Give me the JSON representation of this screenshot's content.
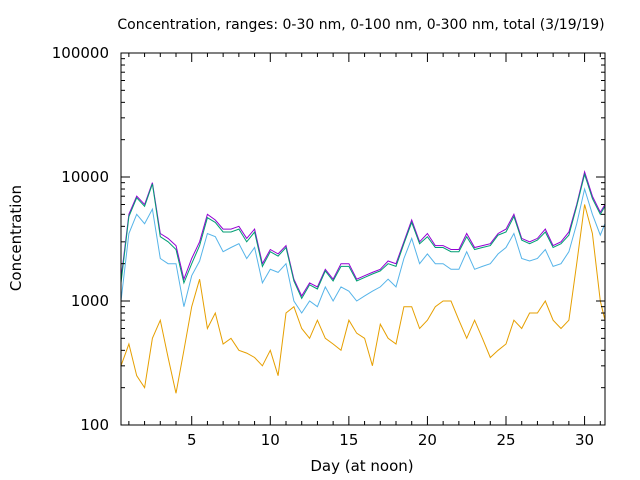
{
  "chart_data": {
    "type": "line",
    "title": "Concentration, ranges: 0-30 nm, 0-100 nm, 0-300 nm, total (3/19/19)",
    "xlabel": "Day (at noon)",
    "ylabel": "Concentration",
    "xlim": [
      0.5,
      31.3
    ],
    "ylim": [
      100,
      100000
    ],
    "yscale": "log",
    "x_ticks": [
      5,
      10,
      15,
      20,
      25,
      30
    ],
    "x_tick_labels": [
      "5",
      "10",
      "15",
      "20",
      "25",
      "30"
    ],
    "y_ticks": [
      100,
      1000,
      10000,
      100000
    ],
    "y_tick_labels": [
      "100",
      "1000",
      "10000",
      "100000"
    ],
    "grid": false,
    "legend": "none",
    "x": [
      0.5,
      1.0,
      1.5,
      2.0,
      2.5,
      3.0,
      3.5,
      4.0,
      4.5,
      5.0,
      5.5,
      6.0,
      6.5,
      7.0,
      7.5,
      8.0,
      8.5,
      9.0,
      9.5,
      10.0,
      10.5,
      11.0,
      11.5,
      12.0,
      12.5,
      13.0,
      13.5,
      14.0,
      14.5,
      15.0,
      15.5,
      16.0,
      16.5,
      17.0,
      17.5,
      18.0,
      18.5,
      19.0,
      19.5,
      20.0,
      20.5,
      21.0,
      21.5,
      22.0,
      22.5,
      23.0,
      23.5,
      24.0,
      24.5,
      25.0,
      25.5,
      26.0,
      26.5,
      27.0,
      27.5,
      28.0,
      28.5,
      29.0,
      29.5,
      30.0,
      30.5,
      31.0,
      31.3
    ],
    "series": [
      {
        "color": "#9400d3",
        "values": [
          1500,
          5000,
          7000,
          6000,
          9000,
          3500,
          3200,
          2800,
          1500,
          2200,
          3000,
          5000,
          4500,
          3800,
          3800,
          4000,
          3200,
          3800,
          2000,
          2600,
          2400,
          2800,
          1500,
          1100,
          1400,
          1300,
          1800,
          1500,
          2000,
          2000,
          1500,
          1600,
          1700,
          1800,
          2100,
          2000,
          3000,
          4500,
          3000,
          3500,
          2800,
          2800,
          2600,
          2600,
          3500,
          2700,
          2800,
          2900,
          3500,
          3800,
          5000,
          3200,
          3000,
          3200,
          3800,
          2800,
          3000,
          3600,
          6000,
          11000,
          7000,
          5200,
          6000
        ]
      },
      {
        "color": "#009e73",
        "values": [
          1400,
          4800,
          6800,
          5800,
          8800,
          3300,
          3000,
          2600,
          1400,
          2000,
          2800,
          4700,
          4300,
          3600,
          3600,
          3800,
          3000,
          3600,
          1900,
          2500,
          2300,
          2700,
          1450,
          1050,
          1350,
          1250,
          1750,
          1450,
          1900,
          1900,
          1450,
          1550,
          1650,
          1750,
          2000,
          1900,
          2900,
          4300,
          2900,
          3300,
          2700,
          2700,
          2500,
          2500,
          3300,
          2600,
          2700,
          2800,
          3400,
          3600,
          4800,
          3100,
          2900,
          3100,
          3600,
          2700,
          2900,
          3400,
          5800,
          10500,
          6700,
          5000,
          5800
        ]
      },
      {
        "color": "#56b4e9",
        "values": [
          1000,
          3500,
          5000,
          4200,
          5500,
          2200,
          2000,
          2000,
          900,
          1600,
          2100,
          3500,
          3300,
          2500,
          2700,
          2900,
          2200,
          2700,
          1400,
          1800,
          1700,
          2000,
          1000,
          800,
          1000,
          900,
          1300,
          1000,
          1300,
          1200,
          1000,
          1100,
          1200,
          1300,
          1500,
          1300,
          2200,
          3200,
          2000,
          2400,
          2000,
          2000,
          1800,
          1800,
          2500,
          1800,
          1900,
          2000,
          2400,
          2700,
          3500,
          2200,
          2100,
          2200,
          2600,
          1900,
          2000,
          2500,
          4200,
          8000,
          5000,
          3400,
          4200
        ]
      },
      {
        "color": "#e69f00",
        "values": [
          300,
          450,
          250,
          200,
          500,
          700,
          350,
          180,
          400,
          900,
          1500,
          600,
          800,
          450,
          500,
          400,
          380,
          350,
          300,
          400,
          250,
          800,
          900,
          600,
          500,
          700,
          500,
          450,
          400,
          700,
          550,
          500,
          300,
          650,
          500,
          450,
          900,
          900,
          600,
          700,
          900,
          1000,
          1000,
          700,
          500,
          700,
          500,
          350,
          400,
          450,
          700,
          600,
          800,
          800,
          1000,
          700,
          600,
          700,
          2000,
          6000,
          3500,
          1000,
          700
        ]
      }
    ]
  }
}
